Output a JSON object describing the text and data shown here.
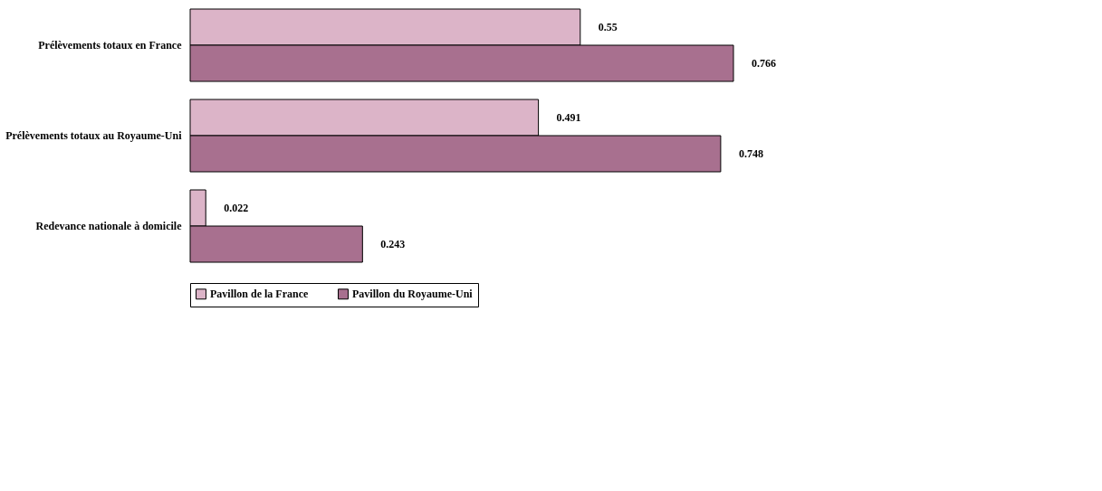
{
  "chart_data": {
    "type": "bar",
    "orientation": "horizontal",
    "categories": [
      "Prélèvements totaux en France",
      "Prélèvements totaux au Royaume-Uni",
      "Redevance nationale à domicile"
    ],
    "series": [
      {
        "name": "Pavillon de la France",
        "color": "#dcb4c8",
        "values": [
          0.55,
          0.491,
          0.022
        ]
      },
      {
        "name": "Pavillon du Royaume-Uni",
        "color": "#a8708f",
        "values": [
          0.766,
          0.748,
          0.243
        ]
      }
    ],
    "data_labels": true,
    "legend": "bottom",
    "tick_labels": "y"
  }
}
